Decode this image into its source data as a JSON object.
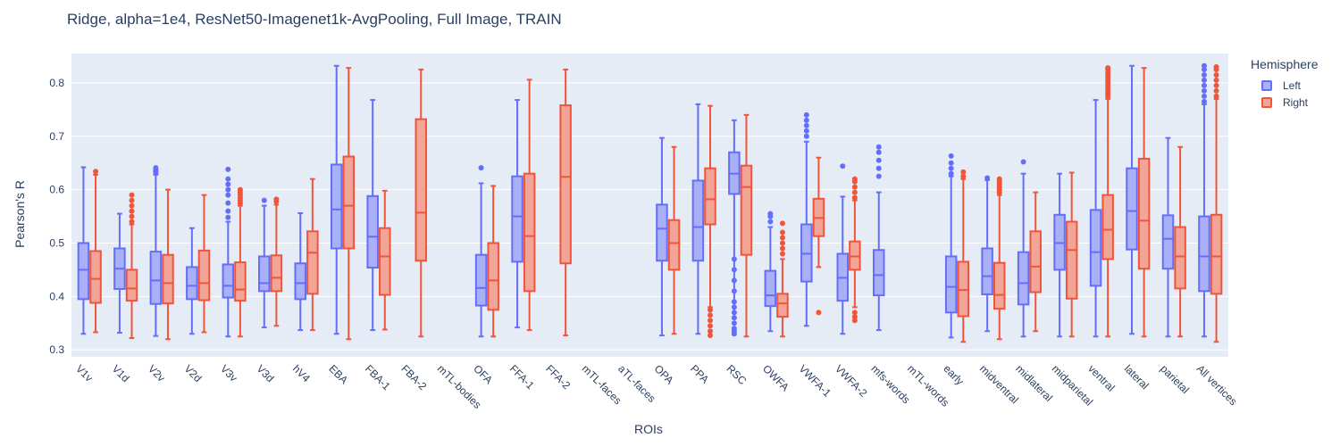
{
  "chart_data": {
    "type": "box",
    "title": "Ridge, alpha=1e4, ResNet50-Imagenet1k-AvgPooling, Full Image, TRAIN",
    "xlabel": "ROIs",
    "ylabel": "Pearson's R",
    "ylim": [
      0.287,
      0.855
    ],
    "yticks": [
      "0.3",
      "0.4",
      "0.5",
      "0.6",
      "0.7",
      "0.8"
    ],
    "categories": [
      "V1v",
      "V1d",
      "V2v",
      "V2d",
      "V3v",
      "V3d",
      "hV4",
      "EBA",
      "FBA-1",
      "FBA-2",
      "mTL-bodies",
      "OFA",
      "FFA-1",
      "FFA-2",
      "mTL-faces",
      "aTL-faces",
      "OPA",
      "PPA",
      "RSC",
      "OWFA",
      "VWFA-1",
      "VWFA-2",
      "mfs-words",
      "mTL-words",
      "early",
      "midventral",
      "midlateral",
      "midparietal",
      "ventral",
      "lateral",
      "parietal",
      "All vertices"
    ],
    "legend": {
      "title": "Hemisphere",
      "position": "top-right"
    },
    "grid": true,
    "series": [
      {
        "name": "Left",
        "color": "#636efa",
        "fill": "#aab0f5",
        "boxes": [
          {
            "min": 0.33,
            "q1": 0.395,
            "median": 0.45,
            "q3": 0.5,
            "max": 0.642,
            "outliers": []
          },
          {
            "min": 0.332,
            "q1": 0.414,
            "median": 0.452,
            "q3": 0.49,
            "max": 0.555,
            "outliers": []
          },
          {
            "min": 0.326,
            "q1": 0.386,
            "median": 0.43,
            "q3": 0.484,
            "max": 0.628,
            "outliers": [
              0.632,
              0.635,
              0.638,
              0.641
            ]
          },
          {
            "min": 0.33,
            "q1": 0.395,
            "median": 0.42,
            "q3": 0.455,
            "max": 0.528,
            "outliers": []
          },
          {
            "min": 0.325,
            "q1": 0.398,
            "median": 0.42,
            "q3": 0.46,
            "max": 0.54,
            "outliers": [
              0.548,
              0.56,
              0.575,
              0.59,
              0.6,
              0.61,
              0.62,
              0.638
            ]
          },
          {
            "min": 0.342,
            "q1": 0.41,
            "median": 0.425,
            "q3": 0.475,
            "max": 0.57,
            "outliers": [
              0.58
            ]
          },
          {
            "min": 0.337,
            "q1": 0.395,
            "median": 0.425,
            "q3": 0.462,
            "max": 0.556,
            "outliers": []
          },
          {
            "min": 0.33,
            "q1": 0.49,
            "median": 0.563,
            "q3": 0.647,
            "max": 0.832,
            "outliers": []
          },
          {
            "min": 0.337,
            "q1": 0.454,
            "median": 0.512,
            "q3": 0.588,
            "max": 0.768,
            "outliers": []
          },
          null,
          null,
          {
            "min": 0.325,
            "q1": 0.383,
            "median": 0.416,
            "q3": 0.478,
            "max": 0.612,
            "outliers": [
              0.641
            ]
          },
          {
            "min": 0.342,
            "q1": 0.465,
            "median": 0.55,
            "q3": 0.625,
            "max": 0.768,
            "outliers": []
          },
          null,
          null,
          null,
          {
            "min": 0.327,
            "q1": 0.467,
            "median": 0.527,
            "q3": 0.572,
            "max": 0.697,
            "outliers": []
          },
          {
            "min": 0.33,
            "q1": 0.467,
            "median": 0.53,
            "q3": 0.617,
            "max": 0.76,
            "outliers": []
          },
          {
            "min": 0.36,
            "q1": 0.592,
            "median": 0.63,
            "q3": 0.67,
            "max": 0.73,
            "outliers": [
              0.33,
              0.335,
              0.34,
              0.35,
              0.36,
              0.37,
              0.38,
              0.39,
              0.41,
              0.43,
              0.45,
              0.47
            ]
          },
          {
            "min": 0.335,
            "q1": 0.382,
            "median": 0.402,
            "q3": 0.448,
            "max": 0.53,
            "outliers": [
              0.54,
              0.55,
              0.555
            ]
          },
          {
            "min": 0.345,
            "q1": 0.428,
            "median": 0.48,
            "q3": 0.535,
            "max": 0.69,
            "outliers": [
              0.7,
              0.71,
              0.72,
              0.73,
              0.74
            ]
          },
          {
            "min": 0.33,
            "q1": 0.392,
            "median": 0.435,
            "q3": 0.48,
            "max": 0.587,
            "outliers": [
              0.644
            ]
          },
          {
            "min": 0.337,
            "q1": 0.402,
            "median": 0.44,
            "q3": 0.487,
            "max": 0.595,
            "outliers": [
              0.625,
              0.64,
              0.655,
              0.67,
              0.68
            ]
          },
          null,
          {
            "min": 0.323,
            "q1": 0.37,
            "median": 0.418,
            "q3": 0.475,
            "max": 0.625,
            "outliers": [
              0.63,
              0.64,
              0.65,
              0.663
            ]
          },
          {
            "min": 0.335,
            "q1": 0.404,
            "median": 0.438,
            "q3": 0.49,
            "max": 0.618,
            "outliers": [
              0.622
            ]
          },
          {
            "min": 0.325,
            "q1": 0.385,
            "median": 0.425,
            "q3": 0.483,
            "max": 0.63,
            "outliers": [
              0.652
            ]
          },
          {
            "min": 0.325,
            "q1": 0.45,
            "median": 0.5,
            "q3": 0.553,
            "max": 0.63,
            "outliers": []
          },
          {
            "min": 0.325,
            "q1": 0.42,
            "median": 0.483,
            "q3": 0.562,
            "max": 0.768,
            "outliers": []
          },
          {
            "min": 0.33,
            "q1": 0.488,
            "median": 0.56,
            "q3": 0.64,
            "max": 0.832,
            "outliers": []
          },
          {
            "min": 0.325,
            "q1": 0.452,
            "median": 0.508,
            "q3": 0.552,
            "max": 0.697,
            "outliers": []
          },
          {
            "min": 0.325,
            "q1": 0.41,
            "median": 0.475,
            "q3": 0.55,
            "max": 0.76,
            "outliers": [
              0.765,
              0.775,
              0.785,
              0.795,
              0.805,
              0.815,
              0.825,
              0.832
            ]
          }
        ]
      },
      {
        "name": "Right",
        "color": "#ef553b",
        "fill": "#f2a597",
        "boxes": [
          {
            "min": 0.333,
            "q1": 0.388,
            "median": 0.433,
            "q3": 0.485,
            "max": 0.628,
            "outliers": [
              0.634
            ]
          },
          {
            "min": 0.322,
            "q1": 0.392,
            "median": 0.415,
            "q3": 0.45,
            "max": 0.535,
            "outliers": [
              0.54,
              0.55,
              0.56,
              0.57,
              0.58,
              0.59
            ]
          },
          {
            "min": 0.32,
            "q1": 0.387,
            "median": 0.425,
            "q3": 0.478,
            "max": 0.6,
            "outliers": []
          },
          {
            "min": 0.333,
            "q1": 0.393,
            "median": 0.425,
            "q3": 0.486,
            "max": 0.59,
            "outliers": []
          },
          {
            "min": 0.325,
            "q1": 0.392,
            "median": 0.413,
            "q3": 0.464,
            "max": 0.57,
            "outliers": [
              0.575,
              0.58,
              0.585,
              0.59,
              0.595,
              0.6
            ]
          },
          {
            "min": 0.345,
            "q1": 0.41,
            "median": 0.435,
            "q3": 0.477,
            "max": 0.572,
            "outliers": [
              0.578,
              0.582
            ]
          },
          {
            "min": 0.337,
            "q1": 0.405,
            "median": 0.482,
            "q3": 0.522,
            "max": 0.62,
            "outliers": []
          },
          {
            "min": 0.32,
            "q1": 0.49,
            "median": 0.57,
            "q3": 0.662,
            "max": 0.828,
            "outliers": []
          },
          {
            "min": 0.338,
            "q1": 0.403,
            "median": 0.475,
            "q3": 0.528,
            "max": 0.598,
            "outliers": []
          },
          {
            "min": 0.325,
            "q1": 0.467,
            "median": 0.557,
            "q3": 0.732,
            "max": 0.825,
            "outliers": []
          },
          null,
          {
            "min": 0.325,
            "q1": 0.375,
            "median": 0.43,
            "q3": 0.5,
            "max": 0.607,
            "outliers": []
          },
          {
            "min": 0.337,
            "q1": 0.41,
            "median": 0.513,
            "q3": 0.63,
            "max": 0.806,
            "outliers": []
          },
          {
            "min": 0.327,
            "q1": 0.462,
            "median": 0.624,
            "q3": 0.758,
            "max": 0.825,
            "outliers": []
          },
          null,
          null,
          {
            "min": 0.33,
            "q1": 0.45,
            "median": 0.5,
            "q3": 0.543,
            "max": 0.68,
            "outliers": []
          },
          {
            "min": 0.38,
            "q1": 0.535,
            "median": 0.582,
            "q3": 0.64,
            "max": 0.757,
            "outliers": [
              0.327,
              0.335,
              0.345,
              0.355,
              0.365,
              0.375
            ]
          },
          {
            "min": 0.325,
            "q1": 0.478,
            "median": 0.605,
            "q3": 0.645,
            "max": 0.74,
            "outliers": []
          },
          {
            "min": 0.325,
            "q1": 0.362,
            "median": 0.387,
            "q3": 0.405,
            "max": 0.47,
            "outliers": [
              0.48,
              0.49,
              0.5,
              0.51,
              0.52,
              0.537
            ]
          },
          {
            "min": 0.455,
            "q1": 0.513,
            "median": 0.547,
            "q3": 0.583,
            "max": 0.66,
            "outliers": [
              0.37
            ]
          },
          {
            "min": 0.38,
            "q1": 0.45,
            "median": 0.475,
            "q3": 0.503,
            "max": 0.58,
            "outliers": [
              0.355,
              0.362,
              0.37,
              0.585,
              0.595,
              0.605,
              0.615,
              0.62
            ]
          },
          null,
          null,
          {
            "min": 0.315,
            "q1": 0.363,
            "median": 0.412,
            "q3": 0.465,
            "max": 0.62,
            "outliers": [
              0.625,
              0.633
            ]
          },
          {
            "min": 0.32,
            "q1": 0.377,
            "median": 0.403,
            "q3": 0.463,
            "max": 0.59,
            "outliers": [
              0.595,
              0.6,
              0.605,
              0.61,
              0.615,
              0.62
            ]
          },
          {
            "min": 0.335,
            "q1": 0.408,
            "median": 0.456,
            "q3": 0.522,
            "max": 0.595,
            "outliers": []
          },
          {
            "min": 0.325,
            "q1": 0.396,
            "median": 0.487,
            "q3": 0.54,
            "max": 0.632,
            "outliers": []
          },
          {
            "min": 0.325,
            "q1": 0.47,
            "median": 0.525,
            "q3": 0.59,
            "max": 0.77,
            "outliers": [
              0.775,
              0.78,
              0.785,
              0.79,
              0.795,
              0.8,
              0.805,
              0.81,
              0.815,
              0.82,
              0.825,
              0.828
            ]
          },
          {
            "min": 0.325,
            "q1": 0.452,
            "median": 0.542,
            "q3": 0.658,
            "max": 0.828,
            "outliers": []
          },
          {
            "min": 0.325,
            "q1": 0.415,
            "median": 0.475,
            "q3": 0.53,
            "max": 0.68,
            "outliers": []
          },
          {
            "min": 0.315,
            "q1": 0.405,
            "median": 0.475,
            "q3": 0.553,
            "max": 0.77,
            "outliers": [
              0.775,
              0.785,
              0.795,
              0.805,
              0.815,
              0.825,
              0.83
            ]
          }
        ]
      }
    ]
  }
}
